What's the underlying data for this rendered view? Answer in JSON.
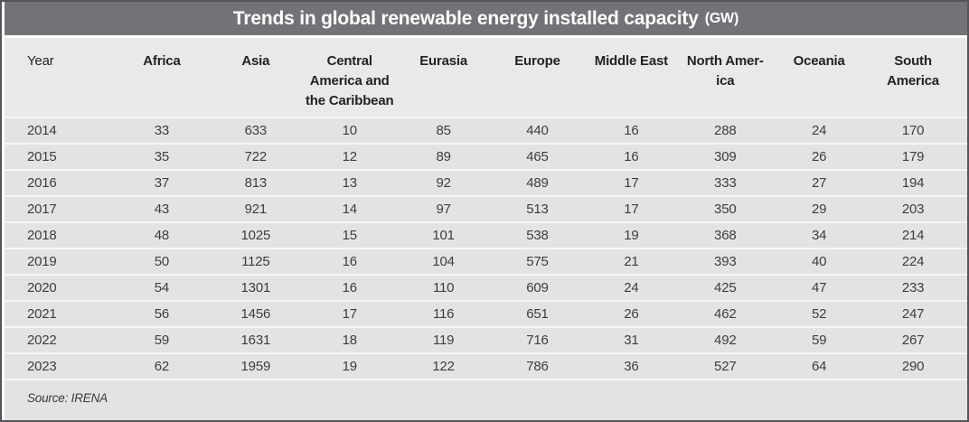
{
  "title": {
    "text": "Trends in global renewable energy installed capacity",
    "unit": "(GW)"
  },
  "table": {
    "columns": [
      "Year",
      "Africa",
      "Asia",
      "Central\nAmerica and\nthe Caribbean",
      "Eurasia",
      "Europe",
      "Middle East",
      "North Amer-\nica",
      "Oceania",
      "South\nAmerica"
    ],
    "rows": [
      [
        "2014",
        "33",
        "633",
        "10",
        "85",
        "440",
        "16",
        "288",
        "24",
        "170"
      ],
      [
        "2015",
        "35",
        "722",
        "12",
        "89",
        "465",
        "16",
        "309",
        "26",
        "179"
      ],
      [
        "2016",
        "37",
        "813",
        "13",
        "92",
        "489",
        "17",
        "333",
        "27",
        "194"
      ],
      [
        "2017",
        "43",
        "921",
        "14",
        "97",
        "513",
        "17",
        "350",
        "29",
        "203"
      ],
      [
        "2018",
        "48",
        "1025",
        "15",
        "101",
        "538",
        "19",
        "368",
        "34",
        "214"
      ],
      [
        "2019",
        "50",
        "1125",
        "16",
        "104",
        "575",
        "21",
        "393",
        "40",
        "224"
      ],
      [
        "2020",
        "54",
        "1301",
        "16",
        "110",
        "609",
        "24",
        "425",
        "47",
        "233"
      ],
      [
        "2021",
        "56",
        "1456",
        "17",
        "116",
        "651",
        "26",
        "462",
        "52",
        "247"
      ],
      [
        "2022",
        "59",
        "1631",
        "18",
        "119",
        "716",
        "31",
        "492",
        "59",
        "267"
      ],
      [
        "2023",
        "62",
        "1959",
        "19",
        "122",
        "786",
        "36",
        "527",
        "64",
        "290"
      ]
    ]
  },
  "source": {
    "label": "Source: IRENA"
  },
  "colors": {
    "title_bar": "#717377",
    "title_text": "#ffffff",
    "header_bg": "#e9e9e9",
    "row_bg": "#e3e3e4",
    "separator": "#f6f6f6",
    "border": "#55565a",
    "header_text": "#232325",
    "data_text": "#3e3e40"
  }
}
